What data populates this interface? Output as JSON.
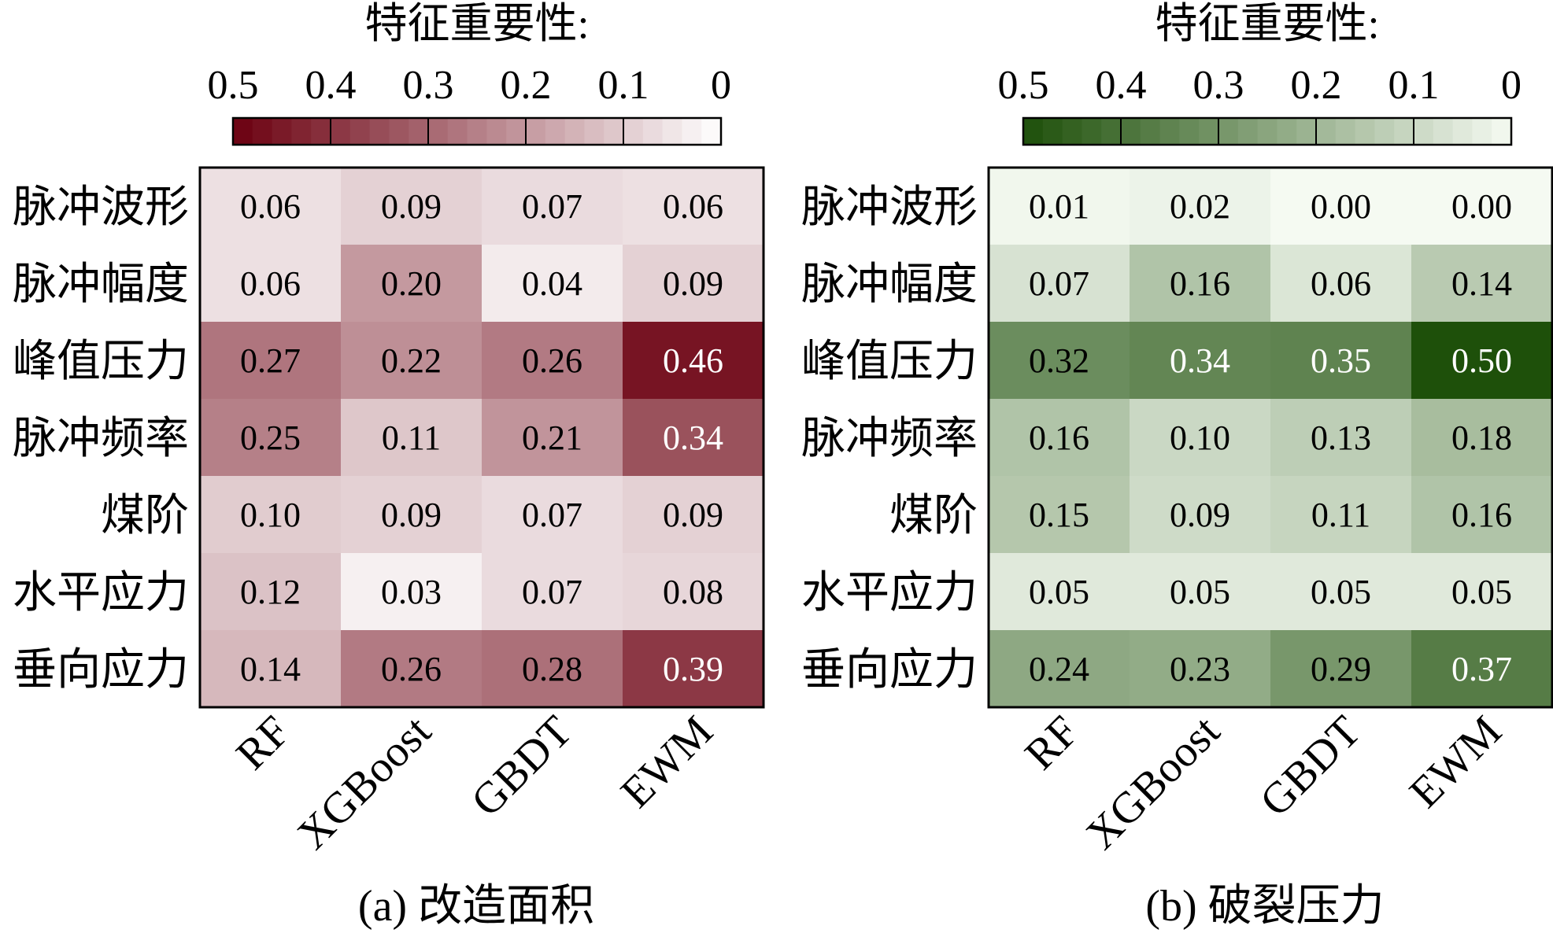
{
  "chart_data": [
    {
      "type": "heatmap",
      "caption": "(a) 改造面积",
      "colorbar_title": "特征重要性:",
      "colorbar_ticks": [
        "0.5",
        "0.4",
        "0.3",
        "0.2",
        "0.1",
        "0"
      ],
      "colorbar_range": [
        0,
        0.5
      ],
      "colors": {
        "low": "#ffffff",
        "high": "#6b0010"
      },
      "rows": [
        "脉冲波形",
        "脉冲幅度",
        "峰值压力",
        "脉冲频率",
        "煤阶",
        "水平应力",
        "垂向应力"
      ],
      "columns": [
        "RF",
        "XGBoost",
        "GBDT",
        "EWM"
      ],
      "values": [
        [
          0.06,
          0.09,
          0.07,
          0.06
        ],
        [
          0.06,
          0.2,
          0.04,
          0.09
        ],
        [
          0.27,
          0.22,
          0.26,
          0.46
        ],
        [
          0.25,
          0.11,
          0.21,
          0.34
        ],
        [
          0.1,
          0.09,
          0.07,
          0.09
        ],
        [
          0.12,
          0.03,
          0.07,
          0.08
        ],
        [
          0.14,
          0.26,
          0.28,
          0.39
        ]
      ]
    },
    {
      "type": "heatmap",
      "caption": "(b) 破裂压力",
      "colorbar_title": "特征重要性:",
      "colorbar_ticks": [
        "0.5",
        "0.4",
        "0.3",
        "0.2",
        "0.1",
        "0"
      ],
      "colorbar_range": [
        0,
        0.5
      ],
      "colors": {
        "low": "#f5faf2",
        "high": "#1e500a"
      },
      "rows": [
        "脉冲波形",
        "脉冲幅度",
        "峰值压力",
        "脉冲频率",
        "煤阶",
        "水平应力",
        "垂向应力"
      ],
      "columns": [
        "RF",
        "XGBoost",
        "GBDT",
        "EWM"
      ],
      "values": [
        [
          0.01,
          0.02,
          0.0,
          0.0
        ],
        [
          0.07,
          0.16,
          0.06,
          0.14
        ],
        [
          0.32,
          0.34,
          0.35,
          0.5
        ],
        [
          0.16,
          0.1,
          0.13,
          0.18
        ],
        [
          0.15,
          0.09,
          0.11,
          0.16
        ],
        [
          0.05,
          0.05,
          0.05,
          0.05
        ],
        [
          0.24,
          0.23,
          0.29,
          0.37
        ]
      ]
    }
  ]
}
